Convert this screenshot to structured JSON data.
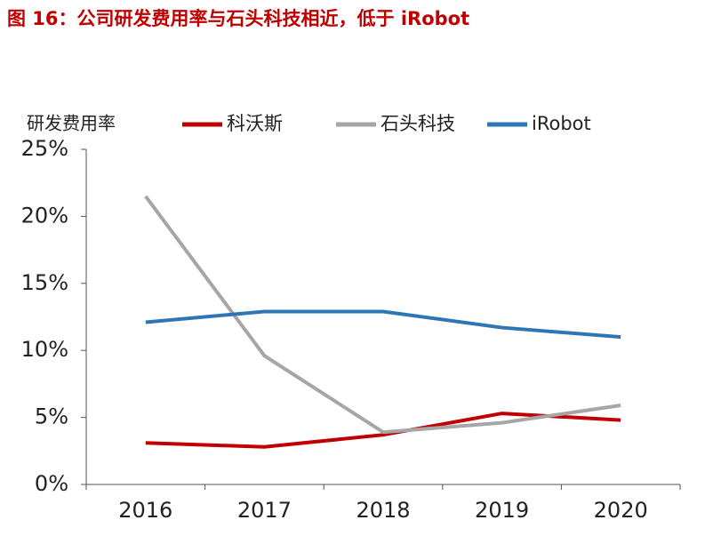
{
  "chart_data": {
    "type": "line",
    "title": "图 16：公司研发费用率与石头科技相近，低于 iRobot",
    "y_label": "研发费用率",
    "categories": [
      "2016",
      "2017",
      "2018",
      "2019",
      "2020"
    ],
    "series": [
      {
        "name": "科沃斯",
        "color": "#c00000",
        "values": [
          3.1,
          2.8,
          3.7,
          5.3,
          4.8
        ]
      },
      {
        "name": "石头科技",
        "color": "#a6a6a6",
        "values": [
          21.5,
          9.6,
          3.9,
          4.6,
          5.9
        ]
      },
      {
        "name": "iRobot",
        "color": "#2e75b6",
        "values": [
          12.1,
          12.9,
          12.9,
          11.7,
          11.0
        ]
      }
    ],
    "ylim": [
      0,
      25
    ],
    "yticks": [
      {
        "value": 0,
        "label": "0%"
      },
      {
        "value": 5,
        "label": "5%"
      },
      {
        "value": 10,
        "label": "10%"
      },
      {
        "value": 15,
        "label": "15%"
      },
      {
        "value": 20,
        "label": "20%"
      },
      {
        "value": 25,
        "label": "25%"
      }
    ]
  }
}
